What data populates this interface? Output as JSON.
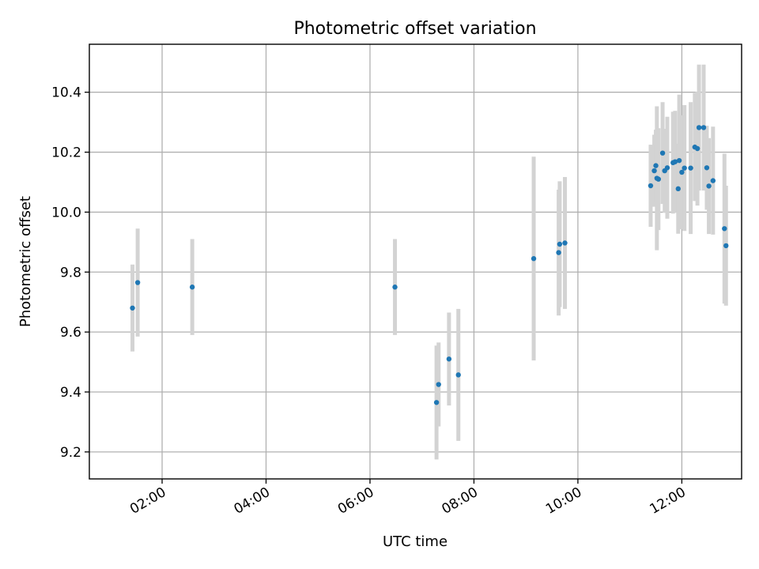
{
  "chart_data": {
    "type": "scatter",
    "title": "Photometric offset variation",
    "xlabel": "UTC time",
    "ylabel": "Photometric offset",
    "x_unit": "hours UTC",
    "xlim": [
      0.6,
      13.15
    ],
    "ylim": [
      9.11,
      10.56
    ],
    "x_ticks": [
      {
        "value": 2,
        "label": "02:00"
      },
      {
        "value": 4,
        "label": "04:00"
      },
      {
        "value": 6,
        "label": "06:00"
      },
      {
        "value": 8,
        "label": "08:00"
      },
      {
        "value": 10,
        "label": "10:00"
      },
      {
        "value": 12,
        "label": "12:00"
      }
    ],
    "y_ticks": [
      {
        "value": 9.2,
        "label": "9.2"
      },
      {
        "value": 9.4,
        "label": "9.4"
      },
      {
        "value": 9.6,
        "label": "9.6"
      },
      {
        "value": 9.8,
        "label": "9.8"
      },
      {
        "value": 10.0,
        "label": "10.0"
      },
      {
        "value": 10.2,
        "label": "10.2"
      },
      {
        "value": 10.4,
        "label": "10.4"
      }
    ],
    "grid": true,
    "x_tick_rotation": "30deg",
    "colors": {
      "point": "#1f77b4",
      "errorbar": "#d3d3d3",
      "grid": "#b0b0b0"
    },
    "points": [
      {
        "x": 1.43,
        "y": 9.68,
        "err": 0.145
      },
      {
        "x": 1.53,
        "y": 9.765,
        "err": 0.18
      },
      {
        "x": 2.58,
        "y": 9.75,
        "err": 0.16
      },
      {
        "x": 6.48,
        "y": 9.75,
        "err": 0.16
      },
      {
        "x": 7.28,
        "y": 9.365,
        "err": 0.19
      },
      {
        "x": 7.32,
        "y": 9.425,
        "err": 0.14
      },
      {
        "x": 7.52,
        "y": 9.51,
        "err": 0.155
      },
      {
        "x": 7.7,
        "y": 9.457,
        "err": 0.22
      },
      {
        "x": 9.15,
        "y": 9.845,
        "err": 0.34
      },
      {
        "x": 9.63,
        "y": 9.865,
        "err": 0.21
      },
      {
        "x": 9.65,
        "y": 9.893,
        "err": 0.21
      },
      {
        "x": 9.75,
        "y": 9.897,
        "err": 0.22
      },
      {
        "x": 11.4,
        "y": 10.088,
        "err": 0.137
      },
      {
        "x": 11.47,
        "y": 10.138,
        "err": 0.12
      },
      {
        "x": 11.5,
        "y": 10.155,
        "err": 0.12
      },
      {
        "x": 11.52,
        "y": 10.113,
        "err": 0.24
      },
      {
        "x": 11.55,
        "y": 10.11,
        "err": 0.17
      },
      {
        "x": 11.63,
        "y": 10.197,
        "err": 0.17
      },
      {
        "x": 11.67,
        "y": 10.138,
        "err": 0.14
      },
      {
        "x": 11.72,
        "y": 10.148,
        "err": 0.17
      },
      {
        "x": 11.83,
        "y": 10.165,
        "err": 0.17
      },
      {
        "x": 11.87,
        "y": 10.168,
        "err": 0.17
      },
      {
        "x": 11.93,
        "y": 10.078,
        "err": 0.15
      },
      {
        "x": 11.95,
        "y": 10.172,
        "err": 0.22
      },
      {
        "x": 12.0,
        "y": 10.133,
        "err": 0.19
      },
      {
        "x": 12.05,
        "y": 10.147,
        "err": 0.21
      },
      {
        "x": 12.17,
        "y": 10.147,
        "err": 0.22
      },
      {
        "x": 12.25,
        "y": 10.217,
        "err": 0.18
      },
      {
        "x": 12.3,
        "y": 10.212,
        "err": 0.19
      },
      {
        "x": 12.33,
        "y": 10.282,
        "err": 0.21
      },
      {
        "x": 12.42,
        "y": 10.282,
        "err": 0.21
      },
      {
        "x": 12.48,
        "y": 10.148,
        "err": 0.14
      },
      {
        "x": 12.52,
        "y": 10.087,
        "err": 0.16
      },
      {
        "x": 12.6,
        "y": 10.105,
        "err": 0.18
      },
      {
        "x": 12.82,
        "y": 9.945,
        "err": 0.25
      },
      {
        "x": 12.85,
        "y": 9.888,
        "err": 0.2
      }
    ]
  }
}
